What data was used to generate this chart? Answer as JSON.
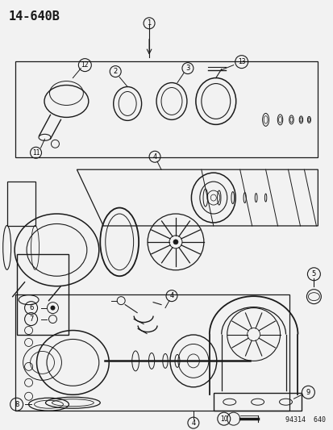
{
  "title": "14-640B",
  "part_number": "94314  640",
  "bg_color": "#f0f0f0",
  "line_color": "#1a1a1a",
  "fig_width": 4.14,
  "fig_height": 5.33,
  "dpi": 100
}
